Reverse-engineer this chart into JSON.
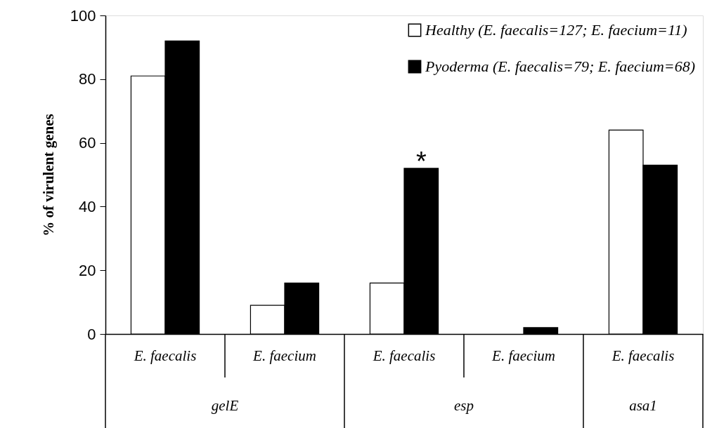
{
  "chart_data": {
    "type": "bar",
    "ylabel": "% of virulent genes",
    "categories": [
      "E. faecalis",
      "E. faecium",
      "E. faecalis",
      "E. faecium",
      "E. faecalis"
    ],
    "series": [
      {
        "name": "Healthy (E. faecalis=127; E. faecium=11)",
        "color": "#ffffff",
        "values": [
          81,
          9,
          16,
          0,
          64
        ]
      },
      {
        "name": "Pyoderma (E. faecalis=79; E. faecium=68)",
        "color": "#000000",
        "values": [
          92,
          16,
          52,
          2,
          53
        ]
      }
    ],
    "ylim": [
      0,
      100
    ],
    "yticks": [
      0,
      20,
      40,
      60,
      80,
      100
    ],
    "annotations": [
      "gelE",
      "esp",
      "asa1",
      "*"
    ],
    "grid": false,
    "legend": "top right"
  }
}
